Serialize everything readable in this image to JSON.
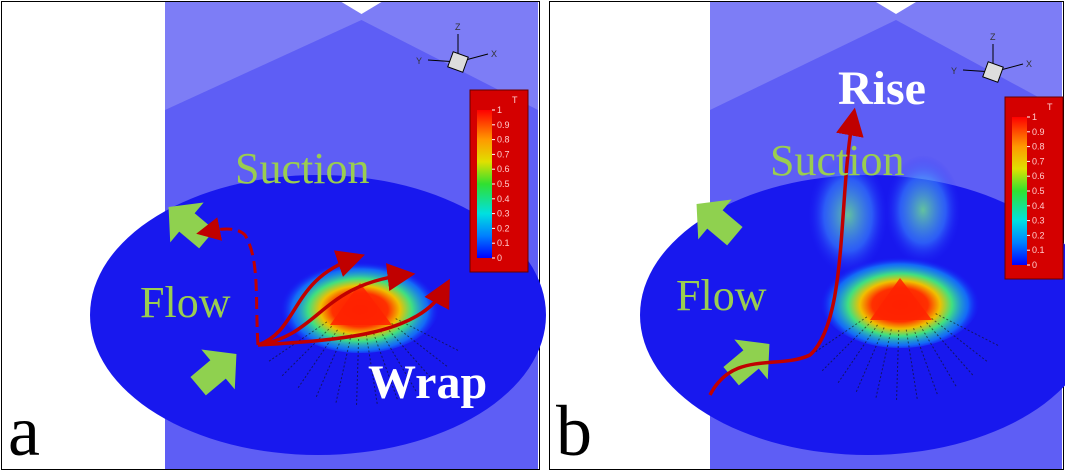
{
  "panels": [
    {
      "label": "a",
      "annotations": {
        "suction": "Suction",
        "flow": "Flow",
        "motion": "Wrap"
      },
      "axes": {
        "z": "Z",
        "y": "Y",
        "x": "X"
      },
      "colorbar": {
        "title": "T",
        "ticks": [
          1,
          0.9,
          0.8,
          0.7,
          0.6,
          0.5,
          0.4,
          0.3,
          0.2,
          0.1,
          0
        ]
      }
    },
    {
      "label": "b",
      "annotations": {
        "suction": "Suction",
        "flow": "Flow",
        "motion": "Rise"
      },
      "axes": {
        "z": "Z",
        "y": "Y",
        "x": "X"
      },
      "colorbar": {
        "title": "T",
        "ticks": [
          1,
          0.9,
          0.8,
          0.7,
          0.6,
          0.5,
          0.4,
          0.3,
          0.2,
          0.1,
          0
        ]
      }
    }
  ]
}
